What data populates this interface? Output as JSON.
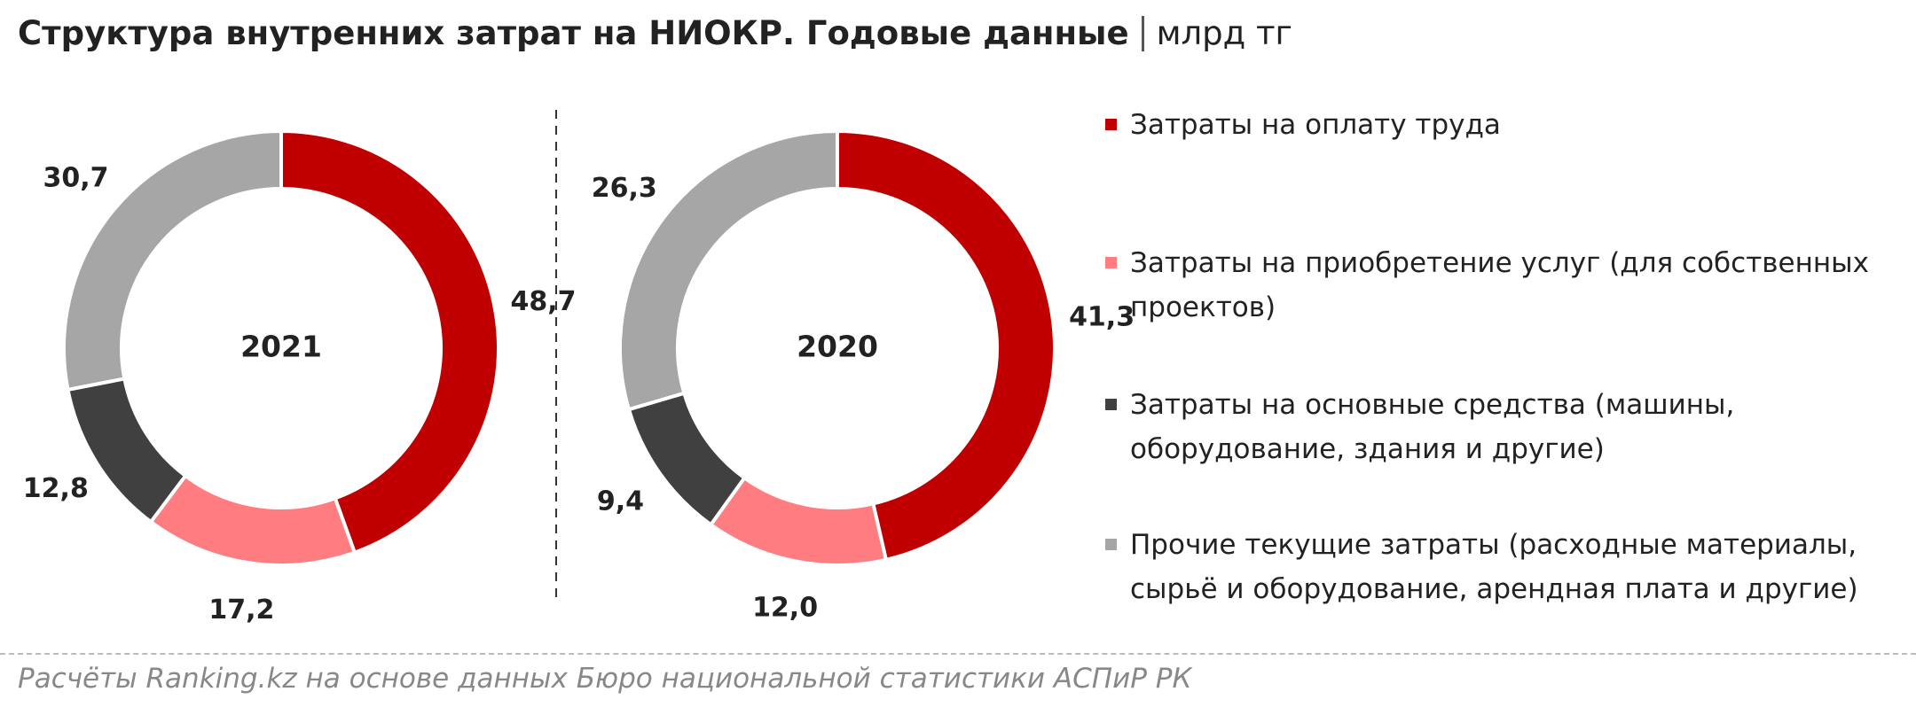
{
  "title": "Структура внутренних затрат на НИОКР. Годовые данные",
  "unit": "млрд тг",
  "legend": {
    "labels": [
      "Затраты на оплату труда",
      "Затраты на приобретение услуг (для собственных проектов)",
      "Затраты на основные средства (машины, оборудование, здания и другие)",
      "Прочие текущие затраты (расходные материалы, сырьё и оборудование, арендная плата и другие)"
    ],
    "colors": [
      "#c00000",
      "#ff7c80",
      "#404040",
      "#a6a6a6"
    ]
  },
  "chart_data": [
    {
      "type": "pie",
      "center_label": "2021",
      "values": [
        48.7,
        17.2,
        12.8,
        30.7
      ],
      "value_labels": [
        "48,7",
        "17,2",
        "12,8",
        "30,7"
      ]
    },
    {
      "type": "pie",
      "center_label": "2020",
      "values": [
        41.3,
        12.0,
        9.4,
        26.3
      ],
      "value_labels": [
        "41,3",
        "12,0",
        "9,4",
        "26,3"
      ]
    }
  ],
  "source": "Расчёты Ranking.kz на основе данных Бюро национальной статистики АСПиР РК"
}
